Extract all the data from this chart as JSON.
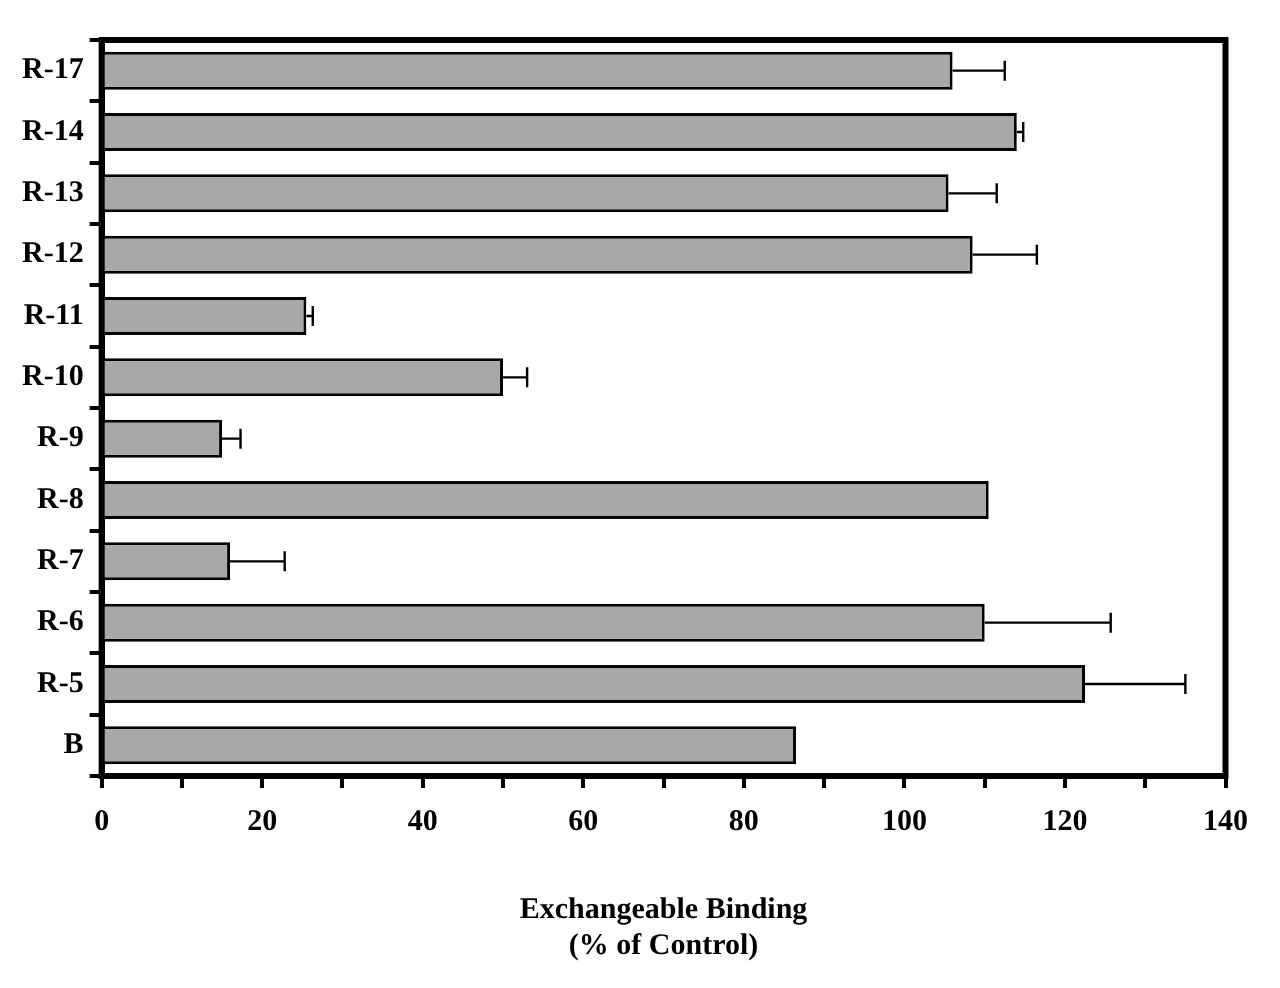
{
  "chart_data": {
    "type": "bar",
    "orientation": "horizontal",
    "xlabel": "Exchangeable Binding\n(% of Control)",
    "categories": [
      "R-17",
      "R-14",
      "R-13",
      "R-12",
      "R-11",
      "R-10",
      "R-9",
      "R-8",
      "R-7",
      "R-6",
      "R-5",
      "B"
    ],
    "values": [
      106,
      114,
      105.5,
      108.5,
      25.5,
      50,
      15,
      110.5,
      16,
      110,
      122.5,
      86.5
    ],
    "errors": [
      [
        106,
        112.5
      ],
      [
        114,
        114.8
      ],
      [
        105.5,
        111.5
      ],
      [
        108.5,
        116.5
      ],
      [
        25.5,
        26.3
      ],
      [
        50,
        53
      ],
      [
        15,
        17.3
      ],
      null,
      [
        16,
        22.8
      ],
      [
        110,
        125.7
      ],
      [
        122.5,
        135
      ],
      null
    ],
    "color": "#a8a8a8",
    "xlim": [
      0,
      140
    ],
    "xticks": [
      0,
      {
        "value": 10,
        "label": null
      },
      20,
      {
        "value": 30,
        "label": null
      },
      40,
      {
        "value": 50,
        "label": null
      },
      60,
      {
        "value": 70,
        "label": null
      },
      80,
      {
        "value": 90,
        "label": null
      },
      100,
      {
        "value": 110,
        "label": null
      },
      120,
      {
        "value": 130,
        "label": null
      },
      140
    ],
    "grid": false,
    "legend": false
  }
}
